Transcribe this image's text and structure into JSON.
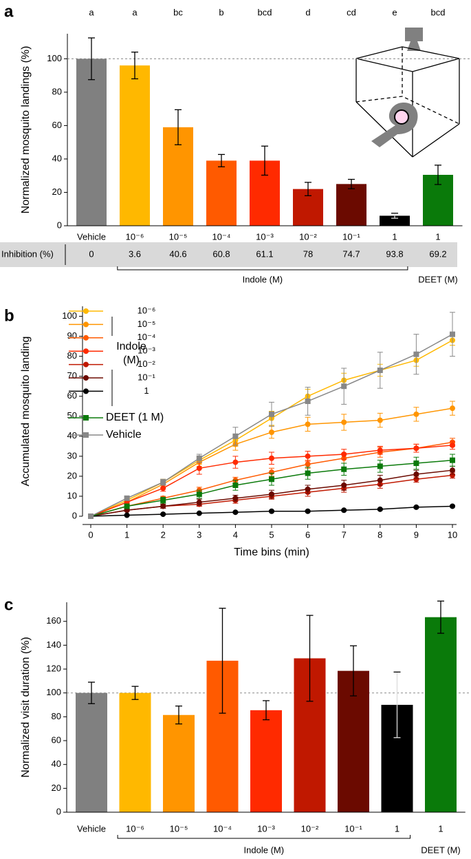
{
  "chart_data": [
    {
      "type": "bar",
      "panel": "a",
      "y_label": "Normalized mosquito landings (%)",
      "categories": [
        "Vehicle",
        "10⁻⁶",
        "10⁻⁵",
        "10⁻⁴",
        "10⁻³",
        "10⁻²",
        "10⁻¹",
        "1",
        "1"
      ],
      "values": [
        100,
        96,
        59,
        39,
        39,
        22,
        25,
        6,
        30.5
      ],
      "errors": [
        12.5,
        8,
        10.5,
        3.7,
        8.7,
        4,
        2.8,
        1.5,
        5.8
      ],
      "colors": [
        "#808080",
        "#ffb800",
        "#ff9500",
        "#ff5a00",
        "#ff2a00",
        "#c01800",
        "#6b0a00",
        "#000000",
        "#0a7a0a"
      ],
      "significance_letters": [
        "a",
        "a",
        "bc",
        "b",
        "bcd",
        "d",
        "cd",
        "e",
        "bcd"
      ],
      "inhibition": {
        "label": "Inhibition (%)",
        "values": [
          "0",
          "3.6",
          "40.6",
          "60.8",
          "61.1",
          "78",
          "74.7",
          "93.8",
          "69.2"
        ]
      },
      "group_labels": [
        "Indole (M)",
        "DEET (M)"
      ],
      "reference_line": 100,
      "ylim": [
        0,
        115
      ],
      "yticks": [
        0,
        20,
        40,
        60,
        80,
        100
      ]
    },
    {
      "type": "line",
      "panel": "b",
      "x_label": "Time bins (min)",
      "y_label": "Accumulated mosquito landing",
      "legend_group_label": [
        "Indole",
        "(M)"
      ],
      "x": [
        0,
        1,
        2,
        3,
        4,
        5,
        6,
        7,
        8,
        9,
        10
      ],
      "series": [
        {
          "name": "10⁻⁶",
          "color": "#ffb800",
          "marker": "circle",
          "values": [
            0,
            8,
            17,
            28,
            38,
            49,
            60,
            68,
            73,
            78,
            88
          ],
          "errors": [
            0,
            1,
            1.5,
            2,
            3,
            3.5,
            3.5,
            3.5,
            3,
            3,
            2.5
          ]
        },
        {
          "name": "10⁻⁵",
          "color": "#ff9500",
          "marker": "circle",
          "values": [
            0,
            7,
            16,
            27,
            36,
            42,
            46,
            47,
            48,
            51,
            54
          ],
          "errors": [
            0,
            1,
            1.5,
            2,
            3,
            3,
            3.5,
            4,
            3.5,
            3.5,
            3.5
          ]
        },
        {
          "name": "10⁻⁴",
          "color": "#ff5a00",
          "marker": "circle",
          "values": [
            0,
            5,
            9,
            13,
            18,
            22,
            26,
            29,
            32,
            34,
            37
          ],
          "errors": [
            0,
            1,
            1,
            1.5,
            1.5,
            2,
            2,
            2.5,
            2.5,
            2,
            2
          ]
        },
        {
          "name": "10⁻³",
          "color": "#ff2a00",
          "marker": "circle",
          "values": [
            0,
            7,
            14,
            24,
            27,
            29,
            30,
            31,
            33,
            34,
            35.5
          ],
          "errors": [
            0,
            1,
            1.5,
            3,
            3,
            3,
            2.5,
            2.5,
            2,
            2,
            2
          ]
        },
        {
          "name": "10⁻²",
          "color": "#c01800",
          "marker": "circle",
          "values": [
            0,
            3,
            5,
            6,
            8,
            10,
            12,
            14,
            16,
            18.5,
            20.5
          ],
          "errors": [
            0,
            0.5,
            1,
            1,
            1.5,
            1.5,
            2,
            2,
            2,
            1.5,
            1.5
          ]
        },
        {
          "name": "10⁻¹",
          "color": "#6b0a00",
          "marker": "circle",
          "values": [
            0,
            3,
            5,
            7,
            9,
            11,
            13.5,
            15.5,
            18,
            21,
            23
          ],
          "errors": [
            0,
            0.5,
            1,
            1.5,
            1.5,
            2,
            2,
            2.5,
            2.5,
            2,
            2
          ]
        },
        {
          "name": "1",
          "color": "#000000",
          "marker": "circle",
          "values": [
            0,
            0.5,
            1,
            1.5,
            2,
            2.5,
            2.5,
            3,
            3.5,
            4.5,
            5
          ],
          "errors": [
            0,
            0.3,
            0.3,
            0.3,
            0.3,
            0.4,
            0.4,
            0.4,
            0.4,
            0.4,
            0.4
          ]
        },
        {
          "name": "DEET (1 M)",
          "color": "#0a7a0a",
          "marker": "square",
          "values": [
            0,
            5,
            8,
            11,
            15.5,
            18.5,
            21.5,
            23.5,
            25,
            26.5,
            28
          ],
          "errors": [
            0,
            1,
            1.5,
            2,
            2.5,
            3,
            3,
            3,
            3,
            3,
            3
          ]
        },
        {
          "name": "Vehicle",
          "color": "#888888",
          "marker": "square",
          "values": [
            0,
            9,
            17,
            29,
            40,
            51,
            57.5,
            65,
            73,
            81,
            91
          ],
          "errors": [
            0,
            1,
            1.5,
            2,
            4.5,
            6,
            7,
            9,
            9,
            10,
            11
          ]
        }
      ],
      "xlim": [
        0,
        10
      ],
      "xticks": [
        0,
        1,
        2,
        3,
        4,
        5,
        6,
        7,
        8,
        9,
        10
      ],
      "ylim": [
        0,
        105
      ],
      "yticks": [
        0,
        10,
        20,
        30,
        40,
        50,
        60,
        70,
        80,
        90,
        100
      ]
    },
    {
      "type": "bar",
      "panel": "c",
      "y_label": "Normalized visit duration (%)",
      "categories": [
        "Vehicle",
        "10⁻⁶",
        "10⁻⁵",
        "10⁻⁴",
        "10⁻³",
        "10⁻²",
        "10⁻¹",
        "1",
        "1"
      ],
      "values": [
        100,
        100,
        81.5,
        127,
        85.5,
        129,
        118.5,
        90,
        163.5
      ],
      "errors": [
        9,
        5.5,
        7.5,
        44,
        8,
        36,
        21,
        27.5,
        13.5
      ],
      "colors": [
        "#808080",
        "#ffb800",
        "#ff9500",
        "#ff5a00",
        "#ff2a00",
        "#c01800",
        "#6b0a00",
        "#000000",
        "#0a7a0a"
      ],
      "group_labels": [
        "Indole (M)",
        "DEET (M)"
      ],
      "reference_line": 100,
      "ylim": [
        0,
        176
      ],
      "yticks": [
        0,
        20,
        40,
        60,
        80,
        100,
        120,
        140,
        160
      ]
    }
  ]
}
